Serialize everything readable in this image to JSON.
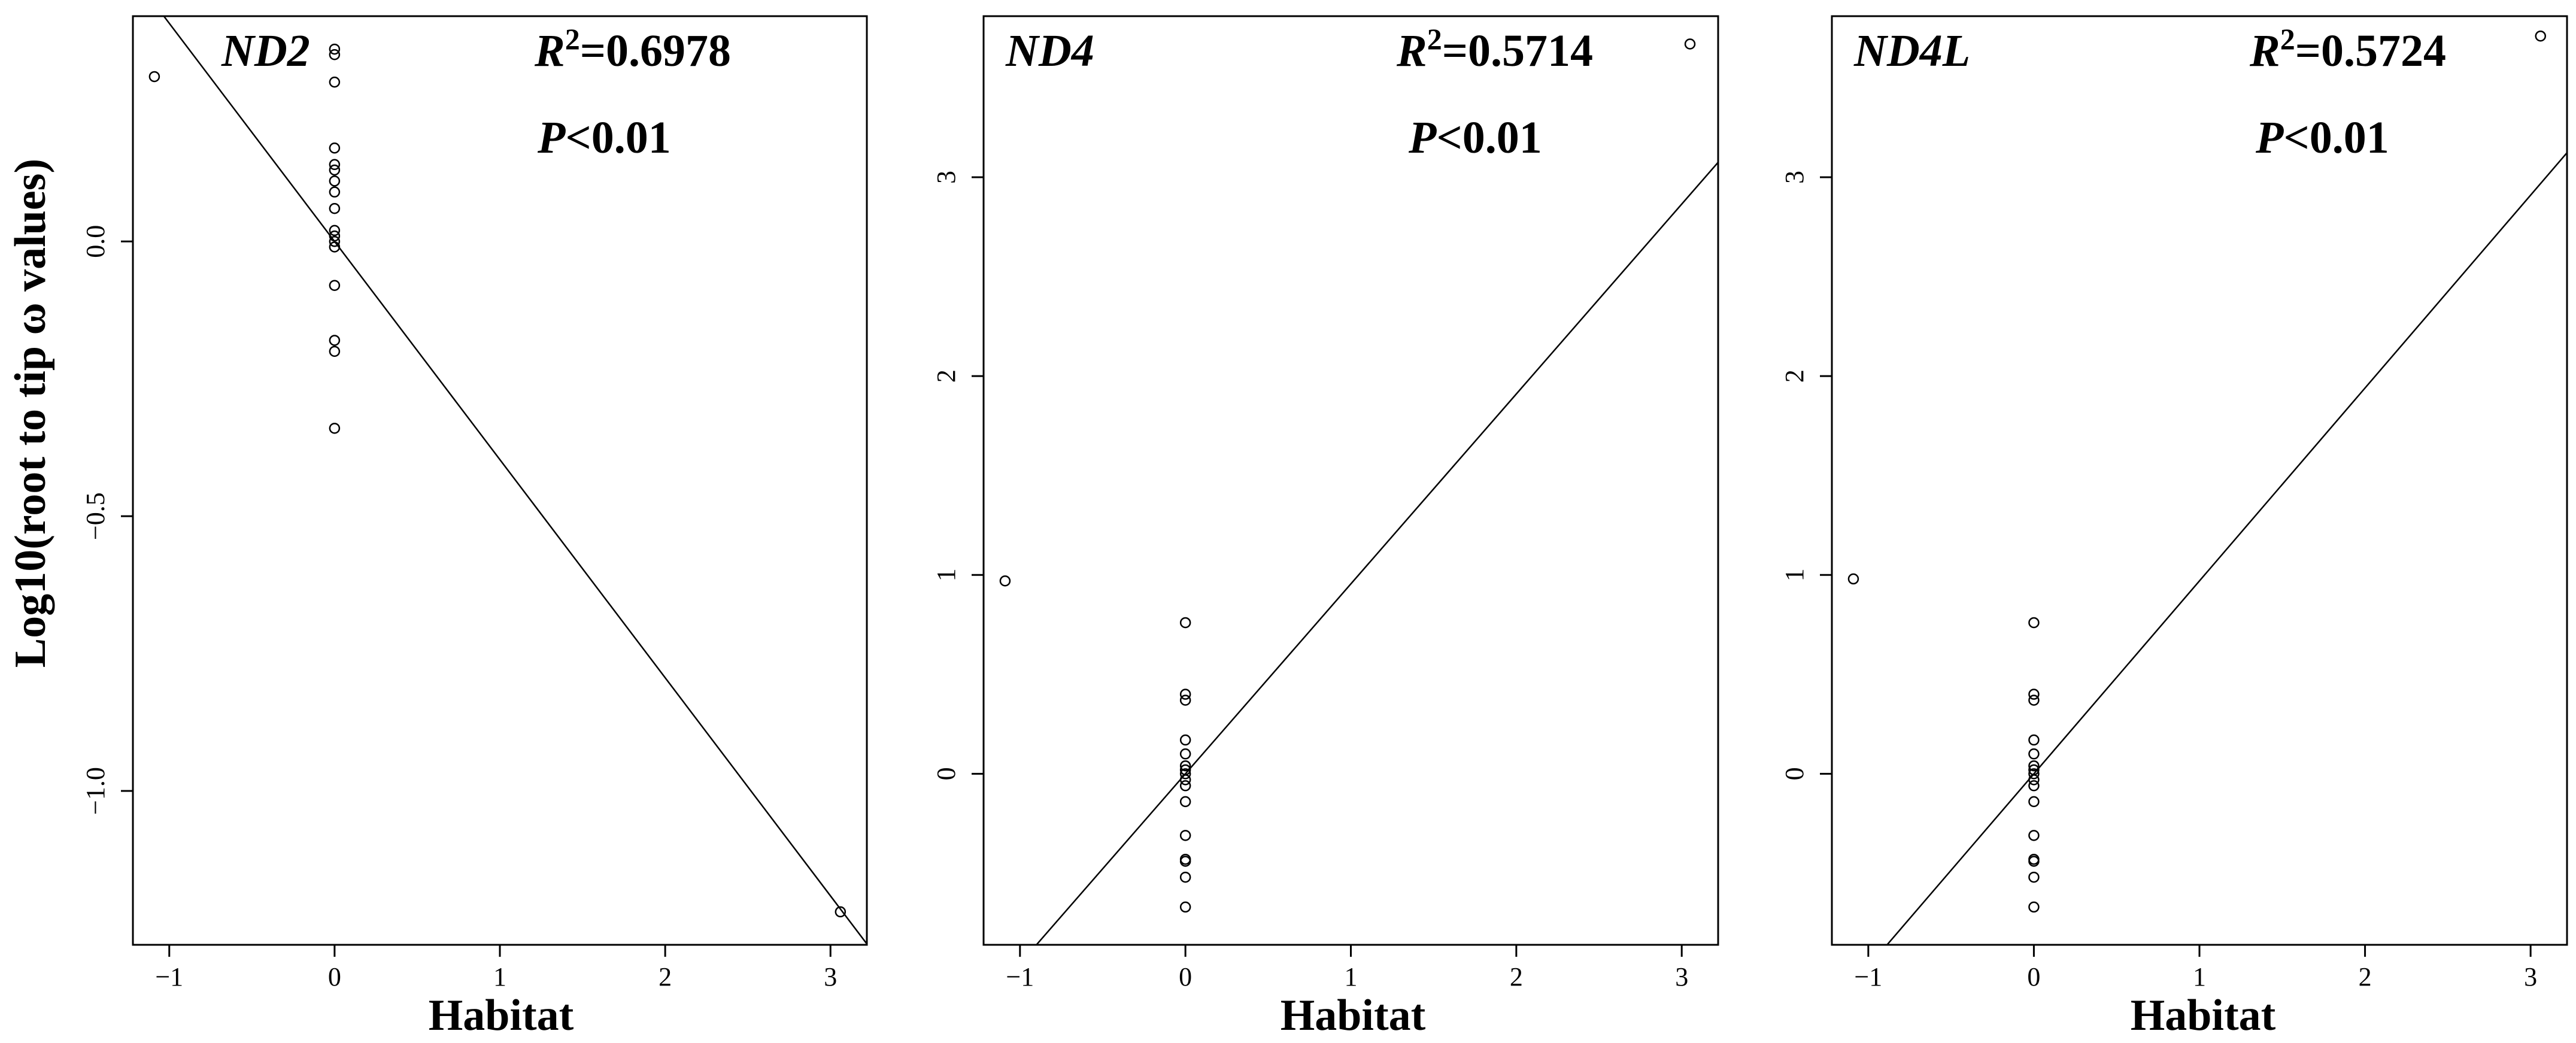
{
  "chart_data": [
    {
      "type": "scatter",
      "gene": "ND2",
      "r2_label": "R",
      "r2_sup": "2",
      "r2_value": "=0.6978",
      "p_label": "P",
      "p_value": "<0.01",
      "xlabel": "Habitat",
      "ylabel": "Log10(root to tip  ω values)",
      "xlim": [
        -1.22,
        3.22
      ],
      "ylim": [
        -1.28,
        0.41
      ],
      "xticks": [
        -1,
        0,
        1,
        2,
        3
      ],
      "yticks": [
        -1.0,
        -0.5,
        0.0
      ],
      "ytick_labels": [
        "−1.0",
        "−0.5",
        "0.0"
      ],
      "points": [
        {
          "x": -1.09,
          "y": 0.3
        },
        {
          "x": 0,
          "y": 0.35
        },
        {
          "x": 0,
          "y": 0.34
        },
        {
          "x": 0,
          "y": 0.29
        },
        {
          "x": 0,
          "y": 0.17
        },
        {
          "x": 0,
          "y": 0.14
        },
        {
          "x": 0,
          "y": 0.13
        },
        {
          "x": 0,
          "y": 0.11
        },
        {
          "x": 0,
          "y": 0.09
        },
        {
          "x": 0,
          "y": 0.06
        },
        {
          "x": 0,
          "y": 0.02
        },
        {
          "x": 0,
          "y": 0.01
        },
        {
          "x": 0,
          "y": 0.0
        },
        {
          "x": 0,
          "y": -0.01
        },
        {
          "x": 0,
          "y": -0.08
        },
        {
          "x": 0,
          "y": -0.18
        },
        {
          "x": 0,
          "y": -0.2
        },
        {
          "x": 0,
          "y": -0.34
        },
        {
          "x": 3.06,
          "y": -1.22
        }
      ],
      "fit_line": {
        "slope": -0.397,
        "intercept": 0.0
      }
    },
    {
      "type": "scatter",
      "gene": "ND4",
      "r2_label": "R",
      "r2_sup": "2",
      "r2_value": "=0.5714",
      "p_label": "P",
      "p_value": "<0.01",
      "xlabel": "Habitat",
      "ylabel": "",
      "xlim": [
        -1.22,
        3.22
      ],
      "ylim": [
        -0.86,
        3.81
      ],
      "xticks": [
        -1,
        0,
        1,
        2,
        3
      ],
      "yticks": [
        0,
        1,
        2,
        3
      ],
      "ytick_labels": [
        "0",
        "1",
        "2",
        "3"
      ],
      "points": [
        {
          "x": -1.09,
          "y": 0.97
        },
        {
          "x": 0,
          "y": 0.76
        },
        {
          "x": 0,
          "y": 0.4
        },
        {
          "x": 0,
          "y": 0.37
        },
        {
          "x": 0,
          "y": 0.17
        },
        {
          "x": 0,
          "y": 0.1
        },
        {
          "x": 0,
          "y": 0.04
        },
        {
          "x": 0,
          "y": 0.02
        },
        {
          "x": 0,
          "y": 0.0
        },
        {
          "x": 0,
          "y": -0.03
        },
        {
          "x": 0,
          "y": -0.06
        },
        {
          "x": 0,
          "y": -0.14
        },
        {
          "x": 0,
          "y": -0.31
        },
        {
          "x": 0,
          "y": -0.43
        },
        {
          "x": 0,
          "y": -0.44
        },
        {
          "x": 0,
          "y": -0.52
        },
        {
          "x": 0,
          "y": -0.67
        },
        {
          "x": 3.05,
          "y": 3.67
        }
      ],
      "fit_line": {
        "slope": 0.955,
        "intercept": 0.0
      }
    },
    {
      "type": "scatter",
      "gene": "ND4L",
      "r2_label": "R",
      "r2_sup": "2",
      "r2_value": "=0.5724",
      "p_label": "P",
      "p_value": "<0.01",
      "xlabel": "Habitat",
      "ylabel": "",
      "xlim": [
        -1.22,
        3.22
      ],
      "ylim": [
        -0.86,
        3.81
      ],
      "xticks": [
        -1,
        0,
        1,
        2,
        3
      ],
      "yticks": [
        0,
        1,
        2,
        3
      ],
      "ytick_labels": [
        "0",
        "1",
        "2",
        "3"
      ],
      "points": [
        {
          "x": -1.09,
          "y": 0.98
        },
        {
          "x": 0,
          "y": 0.76
        },
        {
          "x": 0,
          "y": 0.4
        },
        {
          "x": 0,
          "y": 0.37
        },
        {
          "x": 0,
          "y": 0.17
        },
        {
          "x": 0,
          "y": 0.1
        },
        {
          "x": 0,
          "y": 0.04
        },
        {
          "x": 0,
          "y": 0.02
        },
        {
          "x": 0,
          "y": 0.0
        },
        {
          "x": 0,
          "y": -0.03
        },
        {
          "x": 0,
          "y": -0.06
        },
        {
          "x": 0,
          "y": -0.14
        },
        {
          "x": 0,
          "y": -0.31
        },
        {
          "x": 0,
          "y": -0.43
        },
        {
          "x": 0,
          "y": -0.44
        },
        {
          "x": 0,
          "y": -0.52
        },
        {
          "x": 0,
          "y": -0.67
        },
        {
          "x": 3.06,
          "y": 3.71
        }
      ],
      "fit_line": {
        "slope": 0.97,
        "intercept": 0.0
      }
    }
  ]
}
